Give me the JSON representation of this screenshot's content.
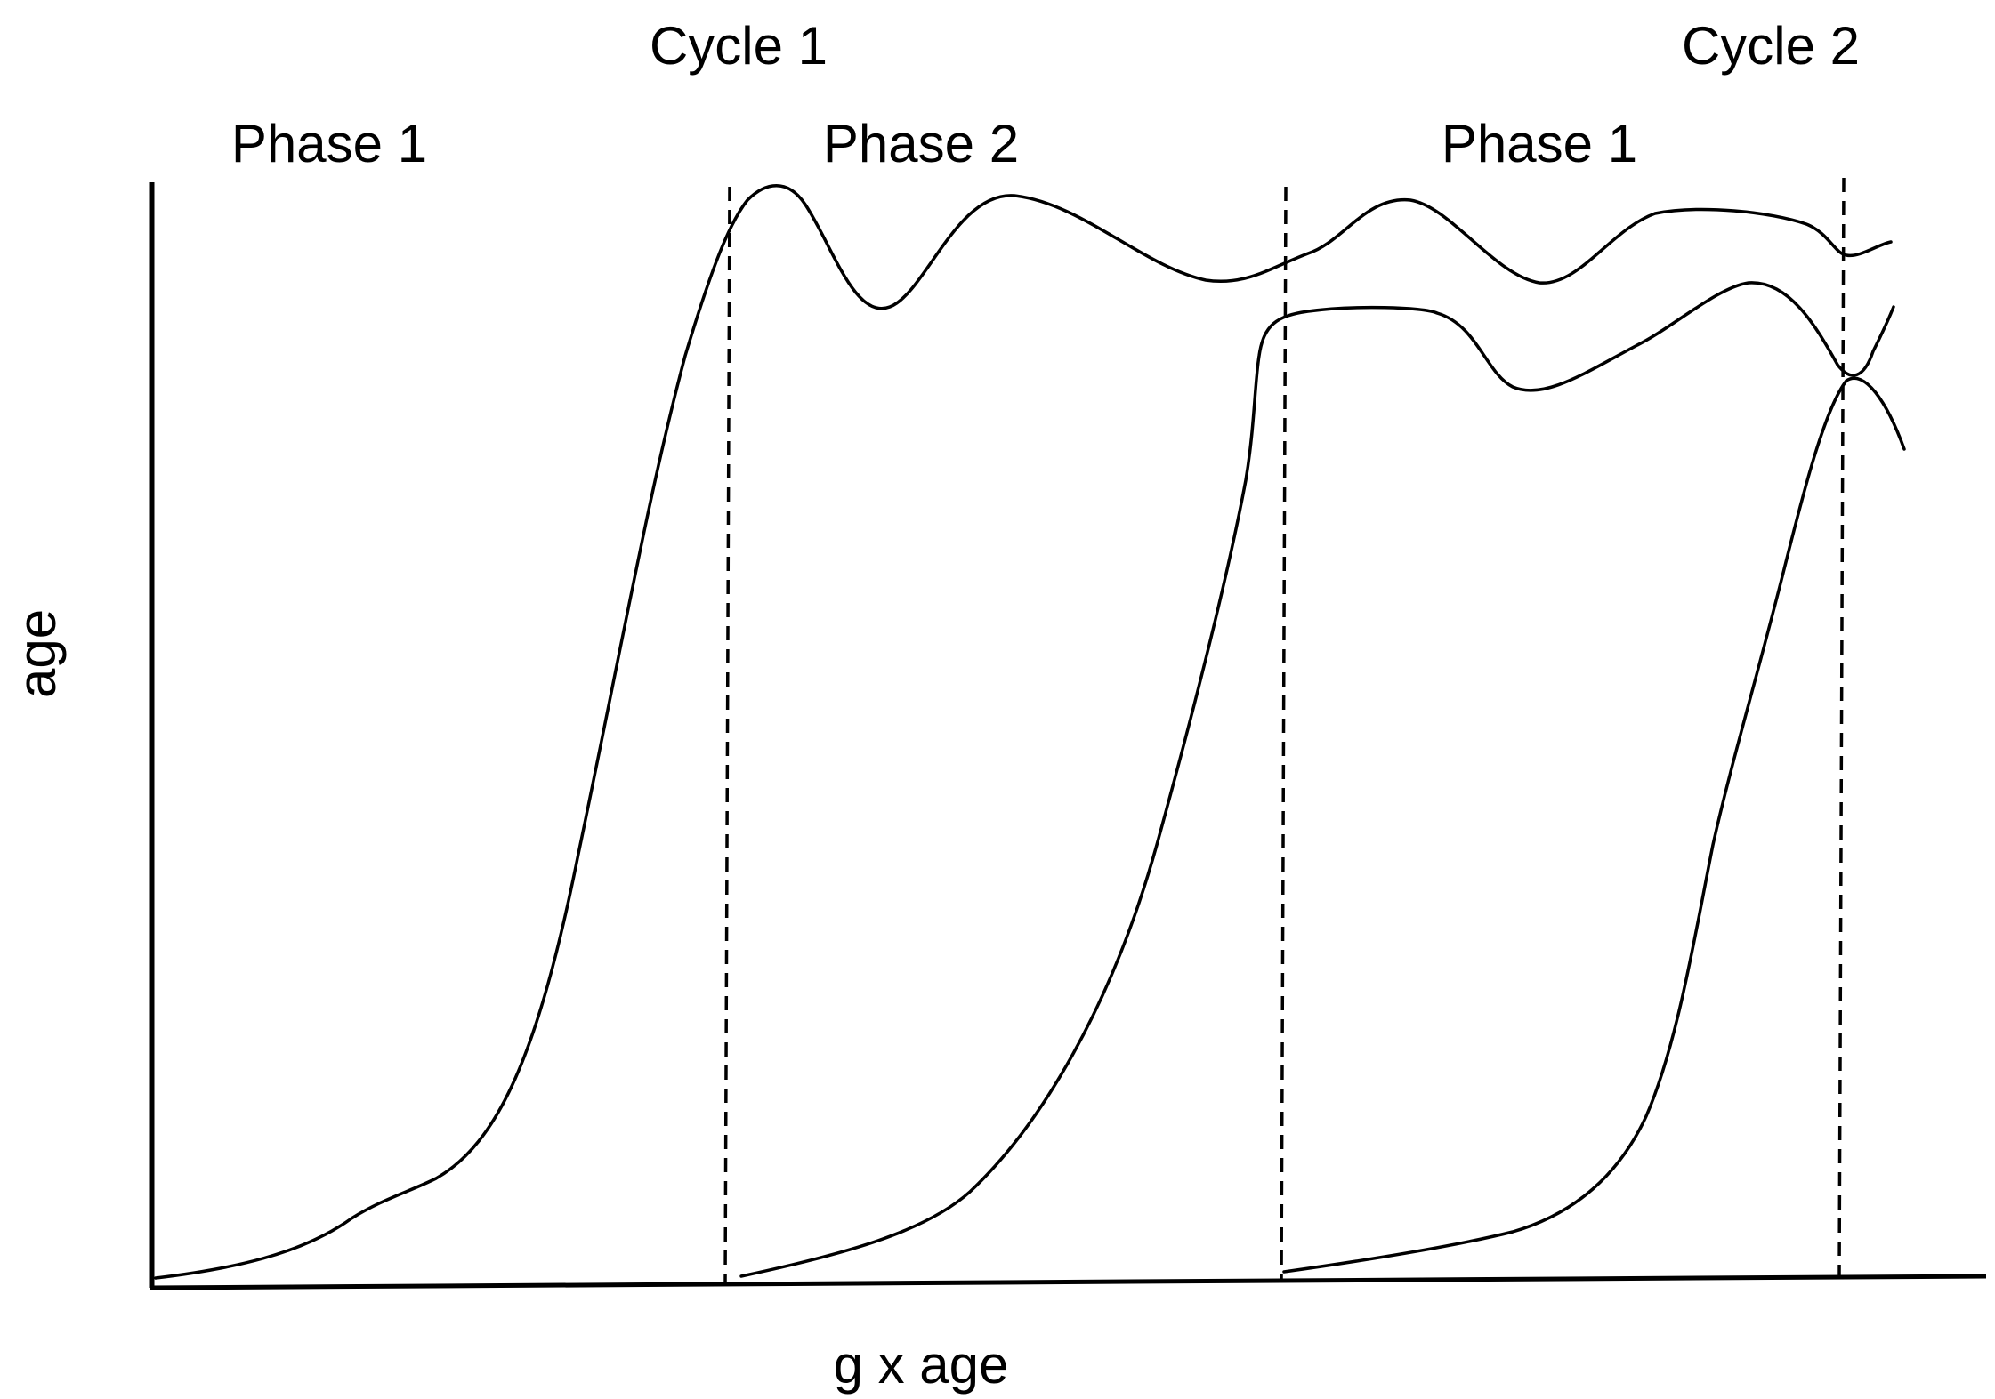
{
  "diagram": {
    "cycle_labels": [
      "Cycle 1",
      "Cycle 2"
    ],
    "phase_labels": [
      "Phase 1",
      "Phase 2",
      "Phase 1"
    ],
    "x_axis_label": "g x age",
    "y_axis_label": "age",
    "colors": {
      "ink": "#000000",
      "background": "#ffffff"
    }
  }
}
